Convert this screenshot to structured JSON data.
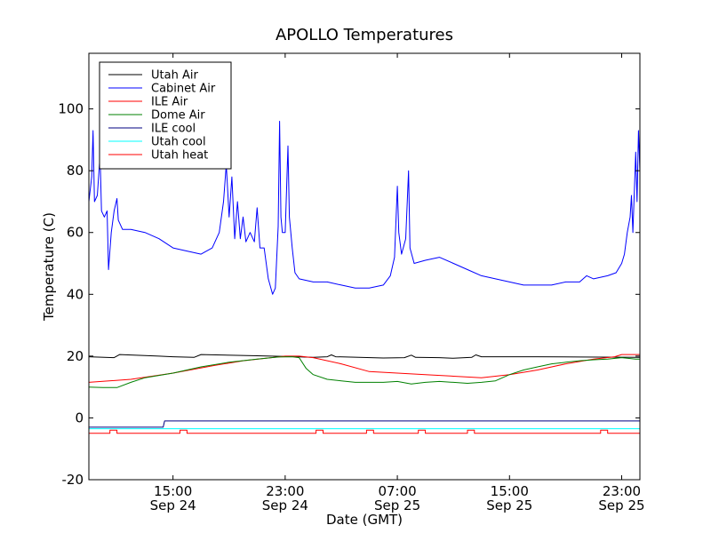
{
  "chart_data": {
    "type": "line",
    "title": "APOLLO Temperatures",
    "xlabel": "Date (GMT)",
    "ylabel": "Temperature (C)",
    "x_unit": "hours since Sep 24 09:00 GMT",
    "xlim": [
      0,
      39.3
    ],
    "ylim": [
      -20,
      118
    ],
    "grid": false,
    "legend_position": "top-left",
    "y_ticks": [
      {
        "value": -20,
        "label": "-20"
      },
      {
        "value": 0,
        "label": "0"
      },
      {
        "value": 20,
        "label": "20"
      },
      {
        "value": 40,
        "label": "40"
      },
      {
        "value": 60,
        "label": "60"
      },
      {
        "value": 80,
        "label": "80"
      },
      {
        "value": 100,
        "label": "100"
      }
    ],
    "x_ticks": [
      {
        "value": 6,
        "time": "15:00",
        "date": "Sep 24"
      },
      {
        "value": 14,
        "time": "23:00",
        "date": "Sep 24"
      },
      {
        "value": 22,
        "time": "07:00",
        "date": "Sep 25"
      },
      {
        "value": 30,
        "time": "15:00",
        "date": "Sep 25"
      },
      {
        "value": 38,
        "time": "23:00",
        "date": "Sep 25"
      }
    ],
    "series": [
      {
        "name": "Utah Air",
        "color": "#000000",
        "points": [
          [
            0,
            19.8
          ],
          [
            1.8,
            19.5
          ],
          [
            2.2,
            20.5
          ],
          [
            5,
            20
          ],
          [
            6,
            19.8
          ],
          [
            7.5,
            19.6
          ],
          [
            8,
            20.5
          ],
          [
            12,
            20.1
          ],
          [
            14,
            19.9
          ],
          [
            16,
            19.6
          ],
          [
            17,
            19.8
          ],
          [
            17.3,
            20.4
          ],
          [
            17.6,
            19.8
          ],
          [
            21,
            19.4
          ],
          [
            22.5,
            19.5
          ],
          [
            23,
            20.3
          ],
          [
            23.3,
            19.6
          ],
          [
            25,
            19.5
          ],
          [
            26,
            19.3
          ],
          [
            27.3,
            19.6
          ],
          [
            27.6,
            20.4
          ],
          [
            28,
            19.8
          ],
          [
            32,
            19.8
          ],
          [
            35,
            19.7
          ],
          [
            39.3,
            19.6
          ]
        ]
      },
      {
        "name": "Cabinet Air",
        "color": "#0000ff",
        "points": [
          [
            0,
            70
          ],
          [
            0.2,
            78
          ],
          [
            0.3,
            93
          ],
          [
            0.4,
            70
          ],
          [
            0.6,
            72
          ],
          [
            0.8,
            85
          ],
          [
            0.9,
            67
          ],
          [
            1.1,
            65
          ],
          [
            1.3,
            67
          ],
          [
            1.4,
            48
          ],
          [
            1.6,
            60
          ],
          [
            1.8,
            67
          ],
          [
            2.0,
            71
          ],
          [
            2.1,
            64
          ],
          [
            2.4,
            61
          ],
          [
            3,
            61
          ],
          [
            4,
            60
          ],
          [
            5,
            58
          ],
          [
            6,
            55
          ],
          [
            7,
            54
          ],
          [
            8,
            53
          ],
          [
            8.8,
            55
          ],
          [
            9.3,
            60
          ],
          [
            9.6,
            70
          ],
          [
            9.8,
            82
          ],
          [
            10,
            65
          ],
          [
            10.2,
            78
          ],
          [
            10.4,
            58
          ],
          [
            10.6,
            70
          ],
          [
            10.8,
            58
          ],
          [
            11,
            65
          ],
          [
            11.2,
            57
          ],
          [
            11.5,
            60
          ],
          [
            11.8,
            57
          ],
          [
            12.0,
            68
          ],
          [
            12.2,
            55
          ],
          [
            12.5,
            55
          ],
          [
            12.8,
            45
          ],
          [
            13.1,
            40
          ],
          [
            13.3,
            42
          ],
          [
            13.5,
            62
          ],
          [
            13.6,
            96
          ],
          [
            13.7,
            65
          ],
          [
            13.8,
            60
          ],
          [
            14.0,
            60
          ],
          [
            14.2,
            88
          ],
          [
            14.3,
            65
          ],
          [
            14.5,
            55
          ],
          [
            14.7,
            47
          ],
          [
            15,
            45
          ],
          [
            16,
            44
          ],
          [
            17,
            44
          ],
          [
            18,
            43
          ],
          [
            19,
            42
          ],
          [
            20,
            42
          ],
          [
            21,
            43
          ],
          [
            21.5,
            46
          ],
          [
            21.8,
            52
          ],
          [
            22,
            75
          ],
          [
            22.1,
            60
          ],
          [
            22.3,
            53
          ],
          [
            22.6,
            58
          ],
          [
            22.8,
            80
          ],
          [
            22.9,
            55
          ],
          [
            23.2,
            50
          ],
          [
            24,
            51
          ],
          [
            25,
            52
          ],
          [
            26,
            50
          ],
          [
            27,
            48
          ],
          [
            28,
            46
          ],
          [
            29,
            45
          ],
          [
            30,
            44
          ],
          [
            31,
            43
          ],
          [
            32,
            43
          ],
          [
            33,
            43
          ],
          [
            34,
            44
          ],
          [
            35,
            44
          ],
          [
            35.5,
            46
          ],
          [
            36,
            45
          ],
          [
            37,
            46
          ],
          [
            37.6,
            47
          ],
          [
            38,
            50
          ],
          [
            38.2,
            53
          ],
          [
            38.4,
            60
          ],
          [
            38.6,
            65
          ],
          [
            38.7,
            72
          ],
          [
            38.8,
            60
          ],
          [
            39.0,
            86
          ],
          [
            39.1,
            70
          ],
          [
            39.2,
            93
          ],
          [
            39.3,
            80
          ]
        ]
      },
      {
        "name": "ILE Air",
        "color": "#ff0000",
        "points": [
          [
            0,
            11.5
          ],
          [
            3,
            12.5
          ],
          [
            6,
            14.5
          ],
          [
            9,
            17
          ],
          [
            11,
            18.5
          ],
          [
            13,
            19.5
          ],
          [
            14,
            20
          ],
          [
            15,
            20
          ],
          [
            16,
            19.5
          ],
          [
            18,
            17.5
          ],
          [
            20,
            15
          ],
          [
            22,
            14.5
          ],
          [
            24,
            14
          ],
          [
            26,
            13.5
          ],
          [
            28,
            13
          ],
          [
            30,
            14
          ],
          [
            32,
            15.5
          ],
          [
            34,
            17.5
          ],
          [
            36,
            19
          ],
          [
            37.5,
            19.8
          ],
          [
            38,
            20.5
          ],
          [
            39.3,
            20.5
          ]
        ]
      },
      {
        "name": "Dome Air",
        "color": "#008000",
        "points": [
          [
            0,
            10
          ],
          [
            1,
            9.8
          ],
          [
            2,
            9.8
          ],
          [
            3,
            11.5
          ],
          [
            4,
            13
          ],
          [
            6,
            14.5
          ],
          [
            8,
            16.5
          ],
          [
            10,
            18
          ],
          [
            12,
            19
          ],
          [
            13.5,
            19.7
          ],
          [
            14.5,
            19.8
          ],
          [
            15,
            19.5
          ],
          [
            15.5,
            16
          ],
          [
            16,
            14
          ],
          [
            17,
            12.5
          ],
          [
            18,
            12
          ],
          [
            19,
            11.5
          ],
          [
            20,
            11.5
          ],
          [
            21,
            11.5
          ],
          [
            22,
            11.8
          ],
          [
            23,
            11
          ],
          [
            24,
            11.5
          ],
          [
            25,
            11.8
          ],
          [
            26,
            11.5
          ],
          [
            27,
            11.2
          ],
          [
            28,
            11.5
          ],
          [
            29,
            12
          ],
          [
            30,
            14
          ],
          [
            31,
            15.5
          ],
          [
            32,
            16.5
          ],
          [
            33,
            17.5
          ],
          [
            34,
            18
          ],
          [
            35,
            18.5
          ],
          [
            36,
            18.8
          ],
          [
            37,
            19
          ],
          [
            38,
            19.5
          ],
          [
            39,
            19
          ],
          [
            39.3,
            19
          ]
        ]
      },
      {
        "name": "ILE cool",
        "color": "#000080",
        "points": [
          [
            0,
            -3
          ],
          [
            5.3,
            -3
          ],
          [
            5.4,
            -1
          ],
          [
            39.3,
            -1
          ]
        ]
      },
      {
        "name": "Utah cool",
        "color": "#00ffff",
        "points": [
          [
            0,
            -3.5
          ],
          [
            39.3,
            -3.5
          ]
        ]
      },
      {
        "name": "Utah heat",
        "color": "#ff0000",
        "points": [
          [
            0,
            -5
          ],
          [
            1.5,
            -5
          ],
          [
            1.5,
            -4
          ],
          [
            2,
            -4
          ],
          [
            2,
            -5
          ],
          [
            6.5,
            -5
          ],
          [
            6.5,
            -4
          ],
          [
            7,
            -4
          ],
          [
            7,
            -5
          ],
          [
            16.2,
            -5
          ],
          [
            16.2,
            -4
          ],
          [
            16.7,
            -4
          ],
          [
            16.7,
            -5
          ],
          [
            19.8,
            -5
          ],
          [
            19.8,
            -4
          ],
          [
            20.3,
            -4
          ],
          [
            20.3,
            -5
          ],
          [
            23.5,
            -5
          ],
          [
            23.5,
            -4
          ],
          [
            24,
            -4
          ],
          [
            24,
            -5
          ],
          [
            27,
            -5
          ],
          [
            27,
            -4
          ],
          [
            27.5,
            -4
          ],
          [
            27.5,
            -5
          ],
          [
            36.5,
            -5
          ],
          [
            36.5,
            -4
          ],
          [
            37,
            -4
          ],
          [
            37,
            -5
          ],
          [
            39.3,
            -5
          ]
        ]
      }
    ]
  }
}
